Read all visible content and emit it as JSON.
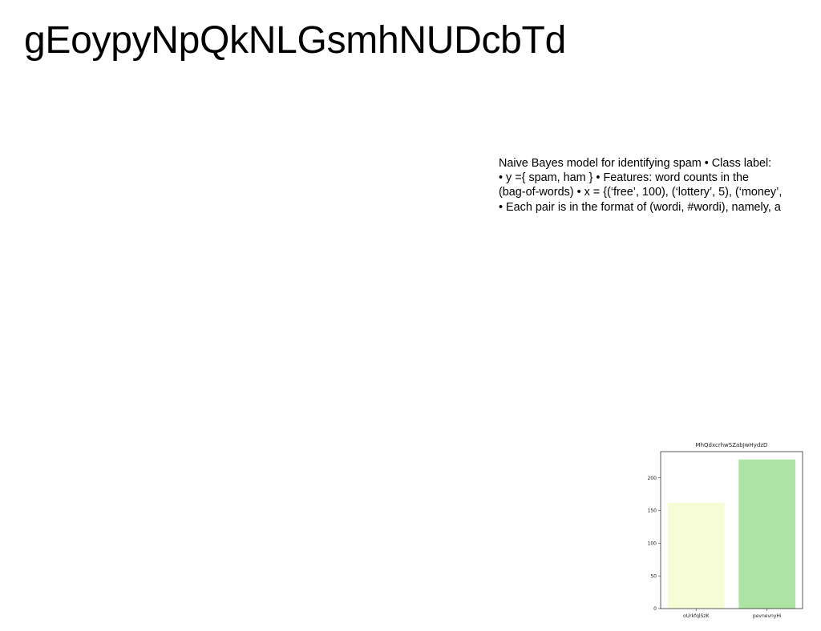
{
  "title": "gEoypyNpQkNLGsmhNUDcbTd",
  "body_lines": [
    "Naive Bayes model for identifying spam • Class label:",
    "• y ={ spam, ham } • Features: word counts in the",
    "(bag-of-words) • x = {(‘free’, 100), (‘lottery’, 5), (‘money’,",
    "• Each pair is in the format of (wordi, #wordi), namely, a"
  ],
  "chart_data": {
    "type": "bar",
    "title": "MhQdxcrhwSZabJwHydzD",
    "categories": [
      "oUrkfqlSzK",
      "pevnevnyHi"
    ],
    "values": [
      162,
      228
    ],
    "colors": [
      "#f5fcd6",
      "#ade3a3"
    ],
    "ylim": [
      0,
      240
    ],
    "yticks": [
      0,
      50,
      100,
      150,
      200
    ],
    "xlabel": "",
    "ylabel": "",
    "grid": false
  }
}
